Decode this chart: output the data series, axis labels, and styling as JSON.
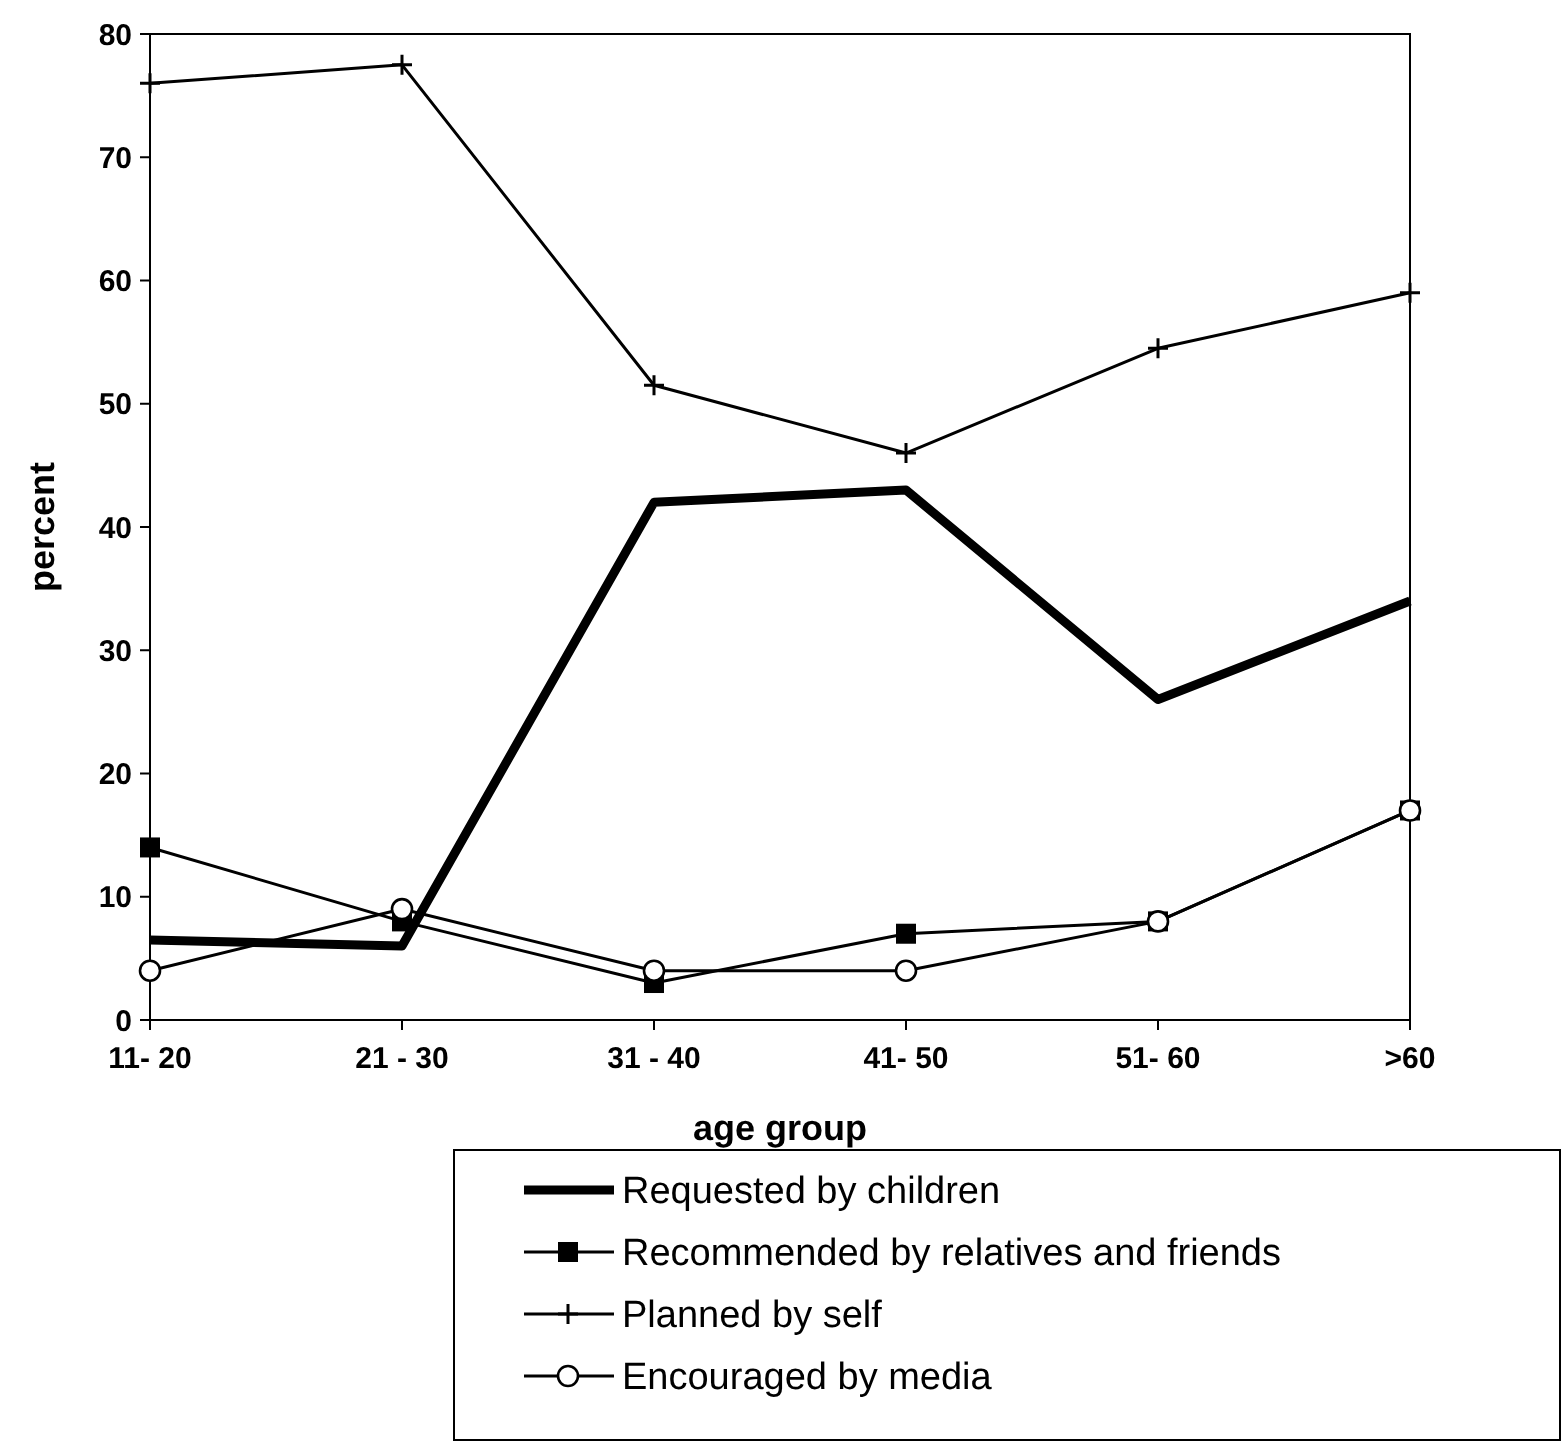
{
  "chart_data": {
    "type": "line",
    "xlabel": "age group",
    "ylabel": "percent",
    "categories": [
      "11- 20",
      "21 - 30",
      "31 - 40",
      "41- 50",
      "51- 60",
      ">60"
    ],
    "ylim": [
      0,
      80
    ],
    "yticks": [
      0,
      10,
      20,
      30,
      40,
      50,
      60,
      70,
      80
    ],
    "grid": false,
    "legend": "bottom",
    "series": [
      {
        "name": "Requested by children",
        "color": "#000000",
        "marker": "none",
        "values": [
          6.5,
          6,
          42,
          43,
          26,
          34
        ]
      },
      {
        "name": "Recommended by relatives and friends",
        "color": "#000000",
        "marker": "square",
        "values": [
          14,
          8,
          3,
          7,
          8,
          17
        ]
      },
      {
        "name": "Planned by self",
        "color": "#000000",
        "marker": "cross",
        "values": [
          76,
          77.5,
          51.5,
          46,
          54.5,
          59
        ]
      },
      {
        "name": "Encouraged by media",
        "color": "#000000",
        "marker": "circle",
        "values": [
          4,
          9,
          4,
          4,
          8,
          17
        ]
      }
    ]
  }
}
